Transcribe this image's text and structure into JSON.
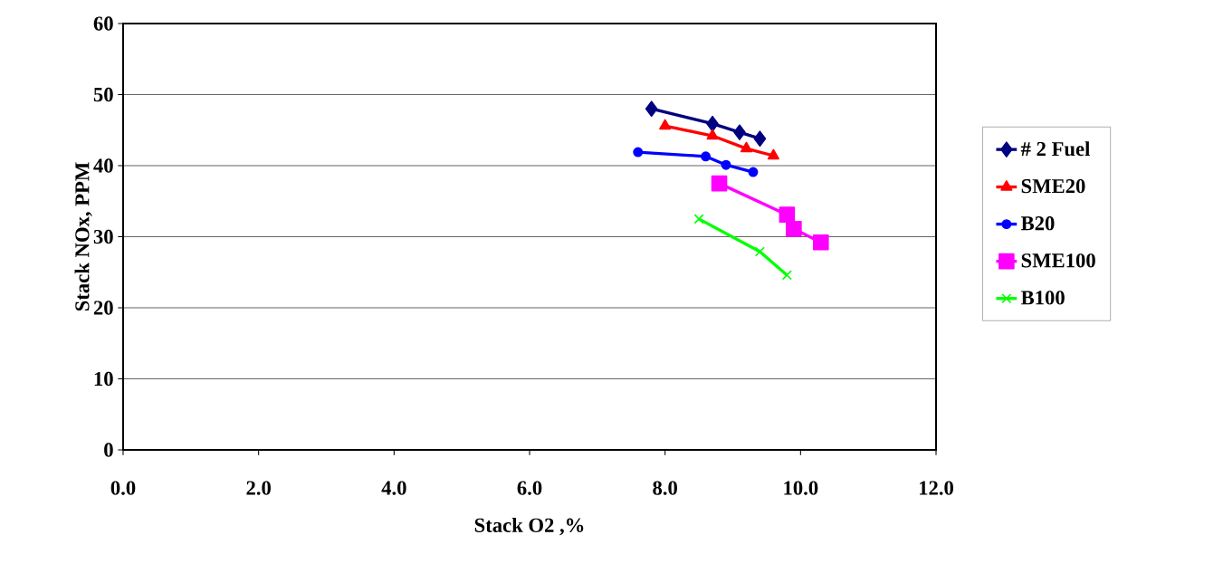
{
  "chart_data": {
    "type": "line",
    "xlabel": "Stack O2 ,%",
    "ylabel": "Stack NOx, PPM",
    "xlim": [
      0,
      12
    ],
    "ylim": [
      0,
      60
    ],
    "xticks": [
      {
        "value": 0,
        "label": "0.0"
      },
      {
        "value": 2,
        "label": "2.0"
      },
      {
        "value": 4,
        "label": "4.0"
      },
      {
        "value": 6,
        "label": "6.0"
      },
      {
        "value": 8,
        "label": "8.0"
      },
      {
        "value": 10,
        "label": "10.0"
      },
      {
        "value": 12,
        "label": "12.0"
      }
    ],
    "yticks": [
      0,
      10,
      20,
      30,
      40,
      50,
      60
    ],
    "grid": "y",
    "legend": "right",
    "series": [
      {
        "name": "# 2 Fuel",
        "color": "#000080",
        "marker": "diamond",
        "x": [
          7.8,
          8.7,
          9.1,
          9.4
        ],
        "values": [
          48.0,
          45.9,
          44.7,
          43.8
        ]
      },
      {
        "name": "SME20",
        "color": "#ff0000",
        "marker": "triangle",
        "x": [
          8.0,
          8.7,
          9.2,
          9.6
        ],
        "values": [
          45.6,
          44.2,
          42.4,
          41.4
        ]
      },
      {
        "name": "B20",
        "color": "#0000ff",
        "marker": "circle",
        "x": [
          7.6,
          8.6,
          8.9,
          9.3
        ],
        "values": [
          41.9,
          41.3,
          40.1,
          39.1
        ]
      },
      {
        "name": "SME100",
        "color": "#ff00ff",
        "marker": "square",
        "x": [
          8.8,
          9.8,
          9.9,
          10.3
        ],
        "values": [
          37.5,
          33.1,
          31.1,
          29.2
        ]
      },
      {
        "name": "B100",
        "color": "#00ff00",
        "marker": "cross",
        "x": [
          8.5,
          9.4,
          9.8
        ],
        "values": [
          32.5,
          27.9,
          24.6
        ]
      }
    ]
  }
}
